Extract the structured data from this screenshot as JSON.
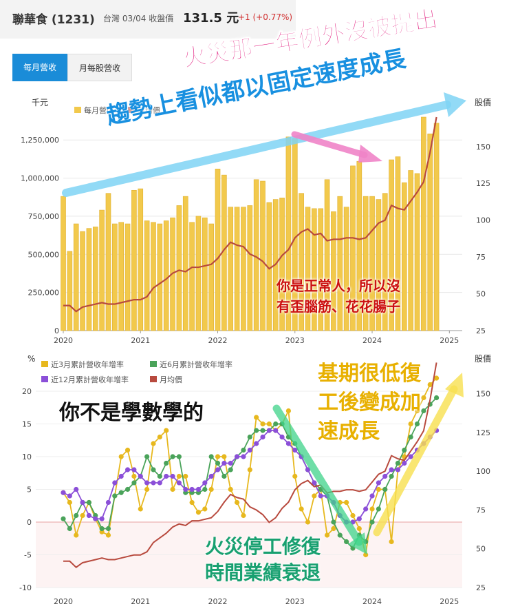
{
  "header": {
    "title": "聯華食 (1231)",
    "meta": "台灣 03/04 收盤價",
    "price": "131.5 元",
    "change": "+1 (+0.77%)"
  },
  "tabs": [
    {
      "label": "每月營收",
      "active": true
    },
    {
      "label": "月每股營收",
      "active": false
    }
  ],
  "annotations": {
    "a1": "火災那一年例外沒被提出",
    "a2": "趨勢上看似都以固定速度成長",
    "a3_l1": "你是正常人，所以沒",
    "a3_l2": "有歪腦筋、花花腸子",
    "a4": "你不是學數學的",
    "a5_l1": "基期很低復",
    "a5_l2": "工後變成加",
    "a5_l3": "速成長",
    "a6_l1": "火災停工修復",
    "a6_l2": "時間業績衰退"
  },
  "colors": {
    "bar": "#f2c94c",
    "price": "#b84a3e",
    "g3": "#e7b81e",
    "g6": "#4aa35a",
    "g12": "#8b4fd8",
    "tab_active": "#1a8cd8"
  },
  "chart_data": [
    {
      "type": "bar",
      "left_unit": "千元",
      "right_unit": "股價",
      "legend": [
        "每月營收",
        "月均價"
      ],
      "x_ticks": [
        "2020",
        "2021",
        "2022",
        "2023",
        "2024",
        "2025"
      ],
      "y_ticks": [
        "0",
        "250,000",
        "500,000",
        "750,000",
        "1,000,000",
        "1,250,000"
      ],
      "y2_ticks": [
        "25",
        "50",
        "75",
        "100",
        "125",
        "150"
      ],
      "ylim": [
        0,
        1400000
      ],
      "y2lim": [
        25,
        170
      ],
      "x_start": "2020-01",
      "revenue": [
        880000,
        520000,
        700000,
        650000,
        670000,
        680000,
        790000,
        900000,
        700000,
        710000,
        700000,
        920000,
        930000,
        720000,
        710000,
        700000,
        720000,
        740000,
        820000,
        880000,
        710000,
        750000,
        740000,
        700000,
        1060000,
        1020000,
        810000,
        810000,
        810000,
        820000,
        990000,
        980000,
        840000,
        860000,
        870000,
        1270000,
        1260000,
        900000,
        810000,
        800000,
        800000,
        990000,
        780000,
        880000,
        810000,
        1080000,
        1110000,
        880000,
        880000,
        860000,
        900000,
        1120000,
        1140000,
        970000,
        1050000,
        1030000,
        1400000,
        1290000,
        1360000
      ],
      "price": [
        42,
        42,
        38,
        41,
        42,
        43,
        44,
        43,
        43,
        44,
        45,
        46,
        46,
        48,
        54,
        57,
        60,
        64,
        66,
        65,
        68,
        68,
        69,
        70,
        74,
        80,
        85,
        83,
        82,
        77,
        75,
        72,
        67,
        70,
        76,
        80,
        88,
        92,
        94,
        90,
        91,
        86,
        87,
        87,
        88,
        88,
        87,
        88,
        93,
        98,
        100,
        110,
        108,
        107,
        113,
        119,
        126,
        146,
        170
      ]
    },
    {
      "type": "line",
      "left_unit": "%",
      "right_unit": "股價",
      "legend": [
        "近3月累計營收年增率",
        "近6月累計營收年增率",
        "近12月累計營收年增率",
        "月均價"
      ],
      "x_ticks": [
        "2020",
        "2021",
        "2022",
        "2023",
        "2024",
        "2025"
      ],
      "y_ticks": [
        "-10",
        "-5",
        "0",
        "5",
        "10",
        "15",
        "20"
      ],
      "y2_ticks": [
        "25",
        "50",
        "75",
        "100",
        "125",
        "150"
      ],
      "ylim": [
        -10,
        22
      ],
      "y2lim": [
        25,
        160
      ],
      "x_start": "2020-01",
      "series": [
        {
          "name": "近3月累計營收年增率",
          "values": [
            4.5,
            3,
            -2,
            1,
            3,
            0.5,
            -1.5,
            -2,
            4,
            10,
            11,
            7,
            2,
            5,
            12,
            13,
            14,
            5,
            7,
            7,
            3,
            1.5,
            2,
            5,
            10,
            10,
            5,
            3,
            1,
            8,
            16,
            15,
            15,
            14,
            15,
            17,
            7,
            2,
            0,
            4,
            5,
            -2,
            -1,
            3,
            3,
            1,
            -1,
            -5,
            2,
            5,
            5,
            -3,
            8,
            10,
            15,
            17,
            19,
            21,
            22
          ]
        },
        {
          "name": "近6月累計營收年增率",
          "values": [
            0.5,
            -1,
            1,
            3,
            3,
            1,
            -1,
            -1,
            4,
            4.5,
            5,
            6,
            7,
            10,
            8,
            7,
            9,
            10,
            10,
            4.5,
            4.5,
            4.5,
            5,
            10,
            9,
            7,
            8,
            10,
            11,
            13,
            14,
            14,
            14,
            15,
            15,
            13,
            12,
            10,
            8,
            6,
            5,
            4,
            0,
            -2,
            -3,
            -4,
            -2,
            -3,
            0,
            2,
            5,
            7,
            9,
            11,
            13,
            15,
            17,
            18,
            19
          ]
        },
        {
          "name": "近12月累計營收年增率",
          "values": [
            4.5,
            4,
            5,
            3,
            1,
            0.5,
            0.5,
            3,
            6,
            7,
            8,
            8,
            7,
            6,
            6,
            6,
            7,
            7,
            6,
            5,
            5,
            5,
            6,
            7,
            8,
            9,
            9,
            10,
            10,
            11,
            12,
            13,
            14,
            14,
            13,
            12,
            11,
            10,
            8,
            6,
            4,
            4,
            3,
            1,
            0,
            0,
            0.5,
            2,
            4,
            6,
            7,
            8,
            8,
            9,
            10,
            11,
            12,
            13,
            14
          ]
        },
        {
          "name": "月均價",
          "values": [
            42,
            42,
            38,
            41,
            42,
            43,
            44,
            43,
            43,
            44,
            45,
            46,
            46,
            48,
            54,
            57,
            60,
            64,
            66,
            65,
            68,
            68,
            69,
            70,
            74,
            80,
            85,
            83,
            82,
            77,
            75,
            72,
            67,
            70,
            76,
            80,
            88,
            92,
            94,
            90,
            91,
            86,
            87,
            87,
            88,
            88,
            87,
            88,
            93,
            98,
            100,
            110,
            108,
            107,
            113,
            119,
            126,
            146,
            170
          ]
        }
      ]
    }
  ]
}
